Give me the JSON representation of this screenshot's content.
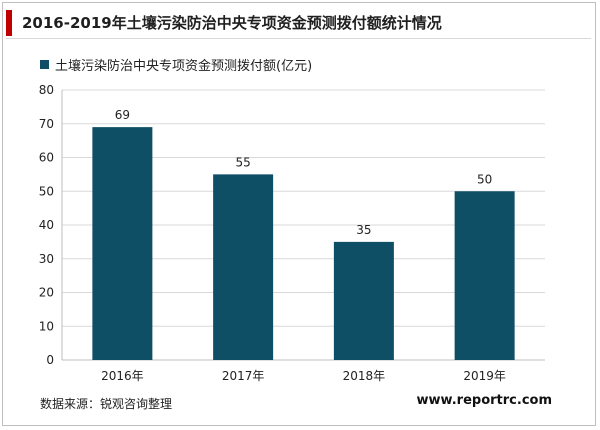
{
  "header": {
    "title": "2016-2019年土壤污染防治中央专项资金预测拨付额统计情况"
  },
  "footer": {
    "source": "数据来源：锐观咨询整理",
    "website": "www.reportrc.com"
  },
  "colors": {
    "bar": "#0e4f66",
    "title_accent": "#c00000",
    "grid": "#d9d9d9"
  },
  "chart_data": {
    "type": "bar",
    "title": "2016-2019年土壤污染防治中央专项资金预测拨付额统计情况",
    "categories": [
      "2016年",
      "2017年",
      "2018年",
      "2019年"
    ],
    "series": [
      {
        "name": "土壤污染防治中央专项资金预测拨付额(亿元)",
        "values": [
          69,
          55,
          35,
          50
        ]
      }
    ],
    "ylim": [
      0,
      80
    ],
    "yticks": [
      0,
      10,
      20,
      30,
      40,
      50,
      60,
      70,
      80
    ],
    "xlabel": "",
    "ylabel": "",
    "grid": true,
    "legend": "top-left",
    "data_labels": true
  }
}
